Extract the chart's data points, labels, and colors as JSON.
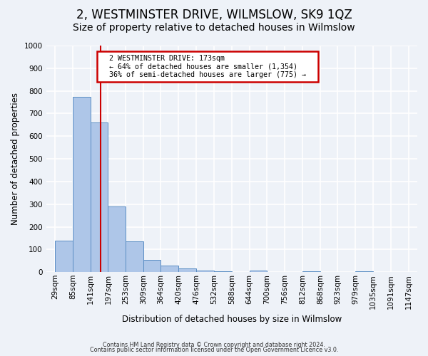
{
  "title": "2, WESTMINSTER DRIVE, WILMSLOW, SK9 1QZ",
  "subtitle": "Size of property relative to detached houses in Wilmslow",
  "xlabel": "Distribution of detached houses by size in Wilmslow",
  "ylabel": "Number of detached properties",
  "bar_values": [
    140,
    775,
    660,
    290,
    135,
    55,
    30,
    15,
    8,
    5,
    0,
    8,
    0,
    0,
    5,
    0,
    0,
    5,
    0,
    0
  ],
  "bin_edges": [
    29,
    85,
    141,
    197,
    253,
    309,
    364,
    420,
    476,
    532,
    588,
    644,
    700,
    756,
    812,
    868,
    923,
    979,
    1035,
    1091,
    1147
  ],
  "tick_labels": [
    "29sqm",
    "85sqm",
    "141sqm",
    "197sqm",
    "253sqm",
    "309sqm",
    "364sqm",
    "420sqm",
    "476sqm",
    "532sqm",
    "588sqm",
    "644sqm",
    "700sqm",
    "756sqm",
    "812sqm",
    "868sqm",
    "923sqm",
    "979sqm",
    "1035sqm",
    "1091sqm",
    "1147sqm"
  ],
  "bar_color": "#aec6e8",
  "bar_edge_color": "#5b8ec4",
  "vline_x": 173,
  "vline_color": "#cc0000",
  "annotation_title": "2 WESTMINSTER DRIVE: 173sqm",
  "annotation_line1": "← 64% of detached houses are smaller (1,354)",
  "annotation_line2": "36% of semi-detached houses are larger (775) →",
  "annotation_box_color": "#ffffff",
  "annotation_box_edge_color": "#cc0000",
  "ylim": [
    0,
    1000
  ],
  "yticks": [
    0,
    100,
    200,
    300,
    400,
    500,
    600,
    700,
    800,
    900,
    1000
  ],
  "footer1": "Contains HM Land Registry data © Crown copyright and database right 2024.",
  "footer2": "Contains public sector information licensed under the Open Government Licence v3.0.",
  "background_color": "#eef2f8",
  "grid_color": "#ffffff",
  "title_fontsize": 12,
  "subtitle_fontsize": 10,
  "tick_fontsize": 7.5
}
